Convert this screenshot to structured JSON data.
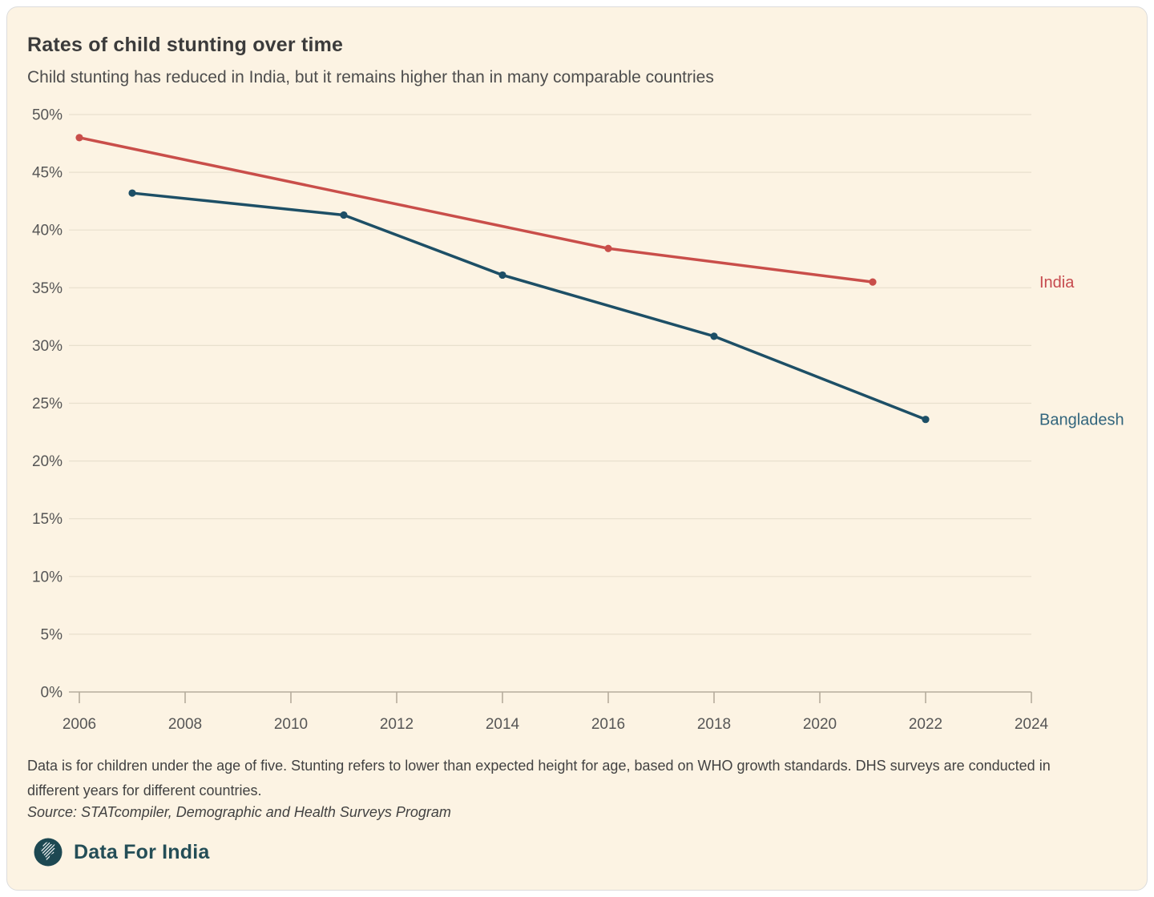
{
  "header": {
    "title": "Rates of child stunting over time",
    "subtitle": "Child stunting has reduced in India, but it remains higher than in many comparable countries"
  },
  "footnotes": {
    "note": "Data is for children under the age of five. Stunting refers to lower than expected height for age, based on WHO growth standards. DHS surveys are conducted in different years for different countries.",
    "source": "Source: STATcompiler, Demographic and Health Surveys Program"
  },
  "branding": {
    "wordmark": "Data For India",
    "logo_icon": "india-map-hatched-circle-icon"
  },
  "colors": {
    "card_background": "#fcf3e3",
    "gridline": "#e8e0ce",
    "axis_line": "#b5ac9c",
    "axis_text": "#565656",
    "india_red": "#c94e4a",
    "india_label": "#c64a4e",
    "bangladesh_teal": "#1d4f66",
    "bangladesh_label": "#32657d",
    "logo_teal": "#1d4852"
  },
  "chart_data": {
    "type": "line",
    "title": "Rates of child stunting over time",
    "subtitle": "Child stunting has reduced in India, but it remains higher than in many comparable countries",
    "xlabel": "",
    "ylabel": "",
    "grid": true,
    "legend_position": "right-edge-labels",
    "x_axis": {
      "min": 2006,
      "max": 2024,
      "ticks": [
        2006,
        2008,
        2010,
        2012,
        2014,
        2016,
        2018,
        2020,
        2022,
        2024
      ]
    },
    "y_axis": {
      "min": 0,
      "max": 50,
      "unit": "%",
      "ticks": [
        0,
        5,
        10,
        15,
        20,
        25,
        30,
        35,
        40,
        45,
        50
      ]
    },
    "series": [
      {
        "name": "India",
        "color": "#c94e4a",
        "label_color": "#c64a4e",
        "points": [
          {
            "x": 2006,
            "y": 48.0
          },
          {
            "x": 2016,
            "y": 38.4
          },
          {
            "x": 2021,
            "y": 35.5
          }
        ]
      },
      {
        "name": "Bangladesh",
        "color": "#1d4f66",
        "label_color": "#32657d",
        "points": [
          {
            "x": 2007,
            "y": 43.2
          },
          {
            "x": 2011,
            "y": 41.3
          },
          {
            "x": 2014,
            "y": 36.1
          },
          {
            "x": 2018,
            "y": 30.8
          },
          {
            "x": 2022,
            "y": 23.6
          }
        ]
      }
    ]
  }
}
